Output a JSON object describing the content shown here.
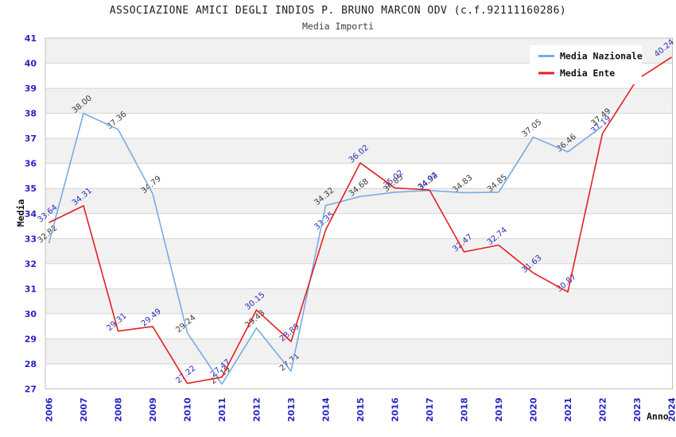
{
  "title": "ASSOCIAZIONE AMICI DEGLI INDIOS P. BRUNO MARCON ODV (c.f.92111160286)",
  "subtitle": "Media Importi",
  "chart_data": {
    "type": "line",
    "x": [
      2006,
      2007,
      2008,
      2009,
      2010,
      2011,
      2012,
      2013,
      2014,
      2015,
      2016,
      2017,
      2018,
      2019,
      2020,
      2021,
      2022,
      2023,
      2024
    ],
    "xlabel": "Anno",
    "ylabel": "Media",
    "ylim": [
      27,
      41
    ],
    "ytick_step": 1,
    "grid": true,
    "band_shading": true,
    "legend_position": "top-right",
    "legend_background": "#ffffff",
    "series": [
      {
        "name": "Media Nazionale",
        "color": "#76ace4",
        "label_color": "#3a3a3a",
        "values": [
          32.82,
          38.0,
          37.36,
          34.79,
          29.24,
          27.19,
          29.43,
          27.71,
          34.32,
          34.68,
          34.85,
          34.92,
          34.83,
          34.85,
          37.05,
          36.46,
          37.49,
          null,
          null
        ],
        "labels": [
          "32.82",
          "38.00",
          "37.36",
          "34.79",
          "29.24",
          "27.19",
          "29.43",
          "27.71",
          "34.32",
          "34.68",
          "34.85",
          "34.92",
          "34.83",
          "34.85",
          "37.05",
          "36.46",
          "37.49",
          "",
          ""
        ]
      },
      {
        "name": "Media Ente",
        "color": "#e32020",
        "label_color": "#2c2cb8",
        "values": [
          33.64,
          34.31,
          29.31,
          29.49,
          27.22,
          27.47,
          30.15,
          28.89,
          33.35,
          36.02,
          35.02,
          34.94,
          32.47,
          32.74,
          31.63,
          30.87,
          37.19,
          39.35,
          40.24
        ],
        "labels": [
          "33.64",
          "34.31",
          "29.31",
          "29.49",
          "27.22",
          "27.47",
          "30.15",
          "28.89",
          "33.35",
          "36.02",
          "35.02",
          "34.94",
          "32.47",
          "32.74",
          "31.63",
          "30.87",
          "37.19",
          "",
          "40.24"
        ]
      }
    ],
    "colors": {
      "tick_label": "#2525c4",
      "grid_line": "#d4d4d4",
      "band_fill": "#f1f1f1",
      "plot_border": "#c0c0c0"
    }
  }
}
